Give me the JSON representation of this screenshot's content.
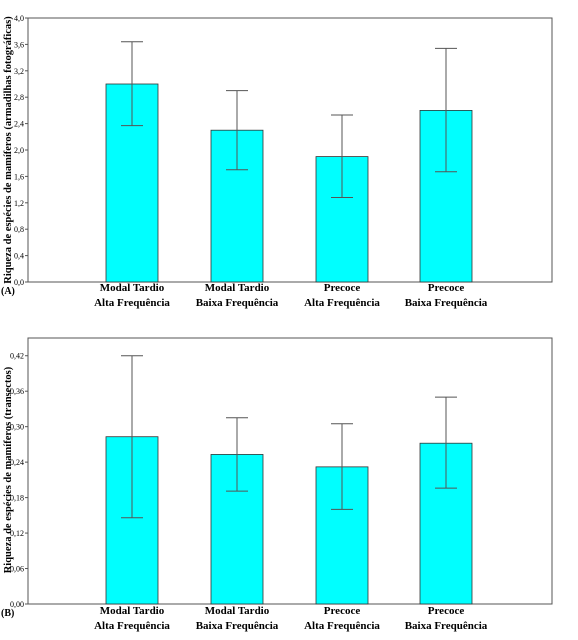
{
  "chart_data": [
    {
      "type": "bar",
      "panel_label": "(A)",
      "ylabel": "Riqueza de espécies de mamíferos (armadilhas fotográficas)",
      "ylim": [
        0,
        4.0
      ],
      "yticks": [
        "0,0",
        "0,4",
        "0,8",
        "1,2",
        "1,6",
        "2,0",
        "2,4",
        "2,8",
        "3,2",
        "3,6",
        "4,0"
      ],
      "categories": [
        [
          "Modal Tardio",
          "Alta Frequência"
        ],
        [
          "Modal Tardio",
          "Baixa Frequência"
        ],
        [
          "Precoce",
          "Alta Frequência"
        ],
        [
          "Precoce",
          "Baixa Frequência"
        ]
      ],
      "values": [
        3.0,
        2.3,
        1.9,
        2.6
      ],
      "error_low": [
        2.37,
        1.7,
        1.28,
        1.67
      ],
      "error_high": [
        3.64,
        2.9,
        2.53,
        3.54
      ],
      "bar_color": "#00ffff"
    },
    {
      "type": "bar",
      "panel_label": "(B)",
      "ylabel": "Riqueza de espécies de mamíferos (transectos)",
      "ylim": [
        0,
        0.45
      ],
      "yticks": [
        "0,00",
        "0,06",
        "0,12",
        "0,18",
        "0,24",
        "0,30",
        "0,36",
        "0,42"
      ],
      "categories": [
        [
          "Modal Tardio",
          "Alta Frequência"
        ],
        [
          "Modal Tardio",
          "Baixa Frequência"
        ],
        [
          "Precoce",
          "Alta Frequência"
        ],
        [
          "Precoce",
          "Baixa Frequência"
        ]
      ],
      "values": [
        0.283,
        0.253,
        0.232,
        0.272
      ],
      "error_low": [
        0.146,
        0.191,
        0.16,
        0.196
      ],
      "error_high": [
        0.42,
        0.315,
        0.305,
        0.35
      ],
      "bar_color": "#00ffff"
    }
  ]
}
